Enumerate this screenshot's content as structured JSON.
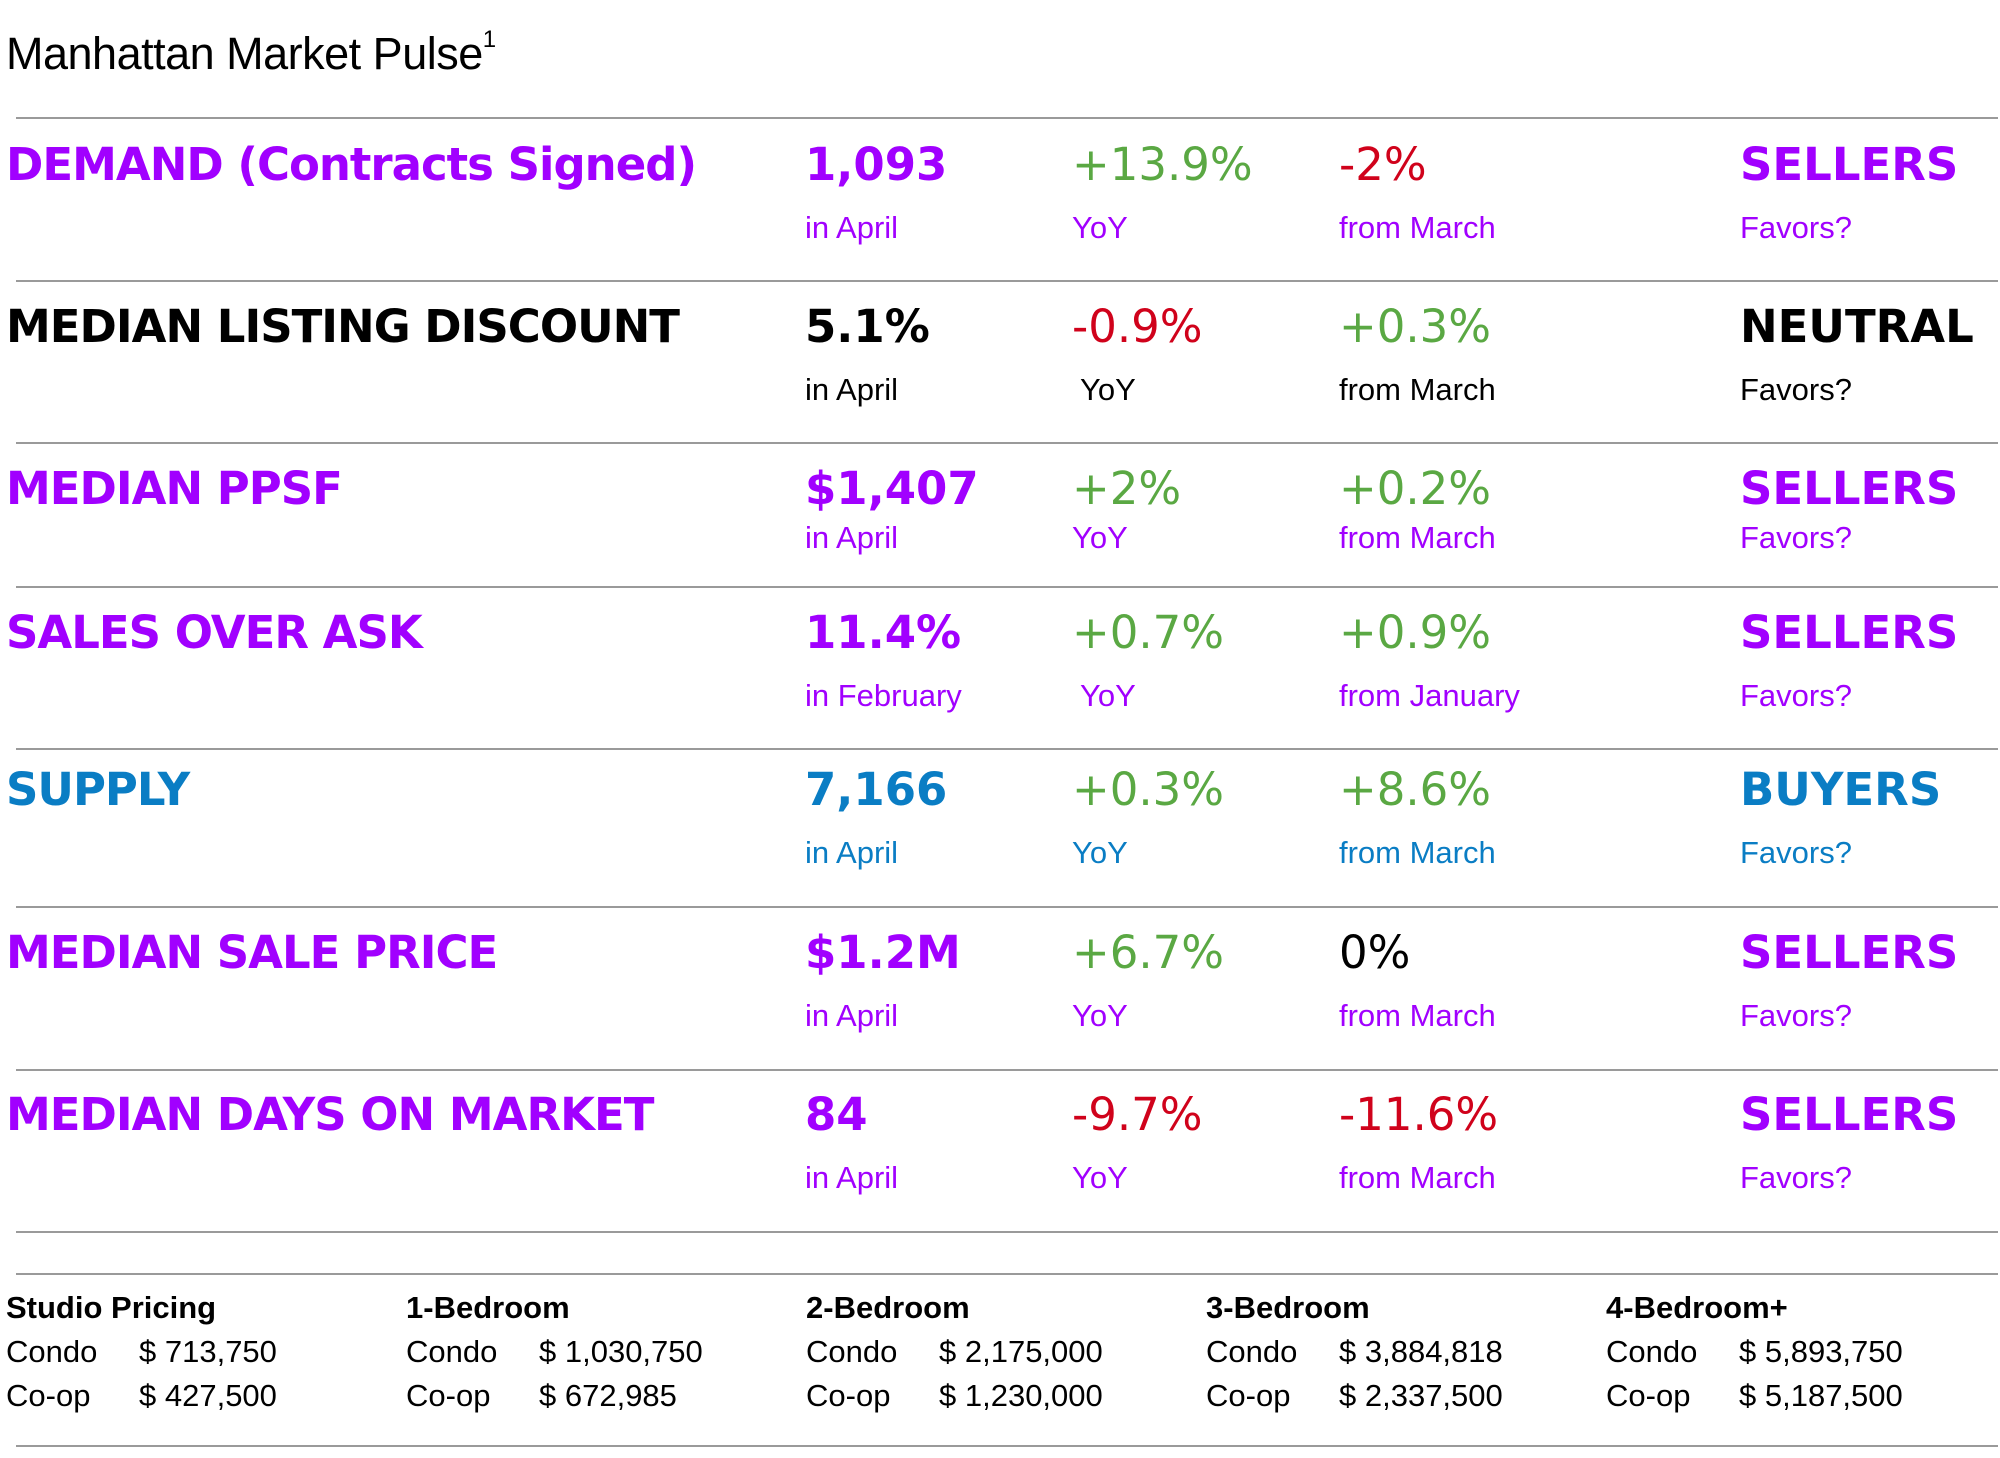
{
  "title": "Manhattan Market Pulse",
  "title_sup": "1",
  "metrics": [
    {
      "name": "DEMAND (Contracts Signed)",
      "value": "1,093",
      "period": "in April",
      "yoy": "+13.9%",
      "yoy_label": "YoY",
      "mom": "-2%",
      "mom_label": "from March",
      "favors": "SELLERS",
      "favors_label": "Favors?"
    },
    {
      "name": "MEDIAN LISTING DISCOUNT",
      "value": "5.1%",
      "period": "in April",
      "yoy": "-0.9%",
      "yoy_label": "YoY",
      "mom": "+0.3%",
      "mom_label": "from March",
      "favors": "NEUTRAL",
      "favors_label": "Favors?"
    },
    {
      "name": "MEDIAN PPSF",
      "value": "$1,407",
      "period": "in April",
      "yoy": "+2%",
      "yoy_label": "YoY",
      "mom": "+0.2%",
      "mom_label": "from March",
      "favors": "SELLERS",
      "favors_label": "Favors?"
    },
    {
      "name": "SALES OVER ASK",
      "value": "11.4%",
      "period": "in February",
      "yoy": "+0.7%",
      "yoy_label": "YoY",
      "mom": "+0.9%",
      "mom_label": "from January",
      "favors": "SELLERS",
      "favors_label": "Favors?"
    },
    {
      "name": "SUPPLY",
      "value": "7,166",
      "period": "in April",
      "yoy": "+0.3%",
      "yoy_label": "YoY",
      "mom": "+8.6%",
      "mom_label": "from March",
      "favors": "BUYERS",
      "favors_label": "Favors?"
    },
    {
      "name": "MEDIAN SALE PRICE",
      "value": "$1.2M",
      "period": "in April",
      "yoy": "+6.7%",
      "yoy_label": "YoY",
      "mom": "0%",
      "mom_label": "from March",
      "favors": "SELLERS",
      "favors_label": "Favors?"
    },
    {
      "name": "MEDIAN DAYS ON MARKET",
      "value": "84",
      "period": "in April",
      "yoy": "-9.7%",
      "yoy_label": "YoY",
      "mom": "-11.6%",
      "mom_label": "from March",
      "favors": "SELLERS",
      "favors_label": "Favors?"
    }
  ],
  "pricing": [
    {
      "heading": "Studio Pricing",
      "condo_label": "Condo",
      "condo": "$ 713,750",
      "coop_label": "Co-op",
      "coop": "$ 427,500"
    },
    {
      "heading": "1-Bedroom",
      "condo_label": "Condo",
      "condo": "$ 1,030,750",
      "coop_label": "Co-op",
      "coop": "$ 672,985"
    },
    {
      "heading": "2-Bedroom",
      "condo_label": "Condo",
      "condo": "$ 2,175,000",
      "coop_label": "Co-op",
      "coop": "$ 1,230,000"
    },
    {
      "heading": "3-Bedroom",
      "condo_label": "Condo",
      "condo": "$ 3,884,818",
      "coop_label": "Co-op",
      "coop": "$ 2,337,500"
    },
    {
      "heading": "4-Bedroom+",
      "condo_label": "Condo",
      "condo": "$ 5,893,750",
      "coop_label": "Co-op",
      "coop": "$ 5,187,500"
    }
  ],
  "colors": {
    "purple": "#a100ff",
    "blue": "#0a7dc4",
    "green": "#5aa843",
    "red": "#d0021b",
    "black": "#000000"
  }
}
